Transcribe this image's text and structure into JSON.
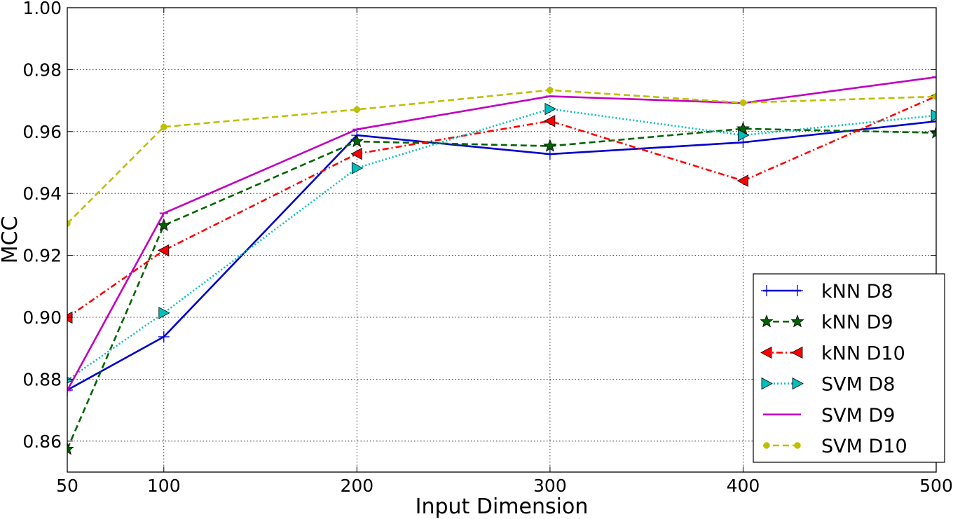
{
  "chart_data": {
    "type": "line",
    "title": "",
    "xlabel": "Input Dimension",
    "ylabel": "MCC",
    "xlim": [
      50,
      500
    ],
    "ylim": [
      0.85,
      1.0
    ],
    "grid": true,
    "legend_position": "bottom-right",
    "xticks": [
      50,
      100,
      200,
      300,
      400,
      500
    ],
    "xtick_labels": [
      "50",
      "100",
      "200",
      "300",
      "400",
      "500"
    ],
    "yticks": [
      0.86,
      0.88,
      0.9,
      0.92,
      0.94,
      0.96,
      0.98,
      1.0
    ],
    "ytick_labels": [
      "0.86",
      "0.88",
      "0.90",
      "0.92",
      "0.94",
      "0.96",
      "0.98",
      "1.00"
    ],
    "x": [
      50,
      100,
      200,
      300,
      400,
      500
    ],
    "series": [
      {
        "name": "kNN D8",
        "color": "#0000cc",
        "dash": "solid",
        "marker": "plus",
        "values": [
          0.8765,
          0.8937,
          0.9588,
          0.9527,
          0.9565,
          0.9633
        ]
      },
      {
        "name": "kNN D9",
        "color": "#006400",
        "dash": "dashed",
        "marker": "star",
        "values": [
          0.8574,
          0.9297,
          0.9568,
          0.9553,
          0.9609,
          0.9596
        ]
      },
      {
        "name": "kNN D10",
        "color": "#ff0000",
        "dash": "dashdot",
        "marker": "triangle-left",
        "values": [
          0.8999,
          0.9216,
          0.9528,
          0.9634,
          0.9441,
          0.9714
        ]
      },
      {
        "name": "SVM D8",
        "color": "#00bfbf",
        "dash": "dotted",
        "marker": "triangle-right",
        "values": [
          0.8797,
          0.9014,
          0.9482,
          0.9673,
          0.9588,
          0.9652
        ]
      },
      {
        "name": "SVM D9",
        "color": "#bf00bf",
        "dash": "solid",
        "marker": "hline",
        "values": [
          0.8764,
          0.9336,
          0.9607,
          0.9714,
          0.9692,
          0.9776
        ]
      },
      {
        "name": "SVM D10",
        "color": "#bfbf00",
        "dash": "dashed",
        "marker": "circle",
        "values": [
          0.9303,
          0.9615,
          0.9671,
          0.9734,
          0.9693,
          0.9713
        ]
      }
    ]
  }
}
